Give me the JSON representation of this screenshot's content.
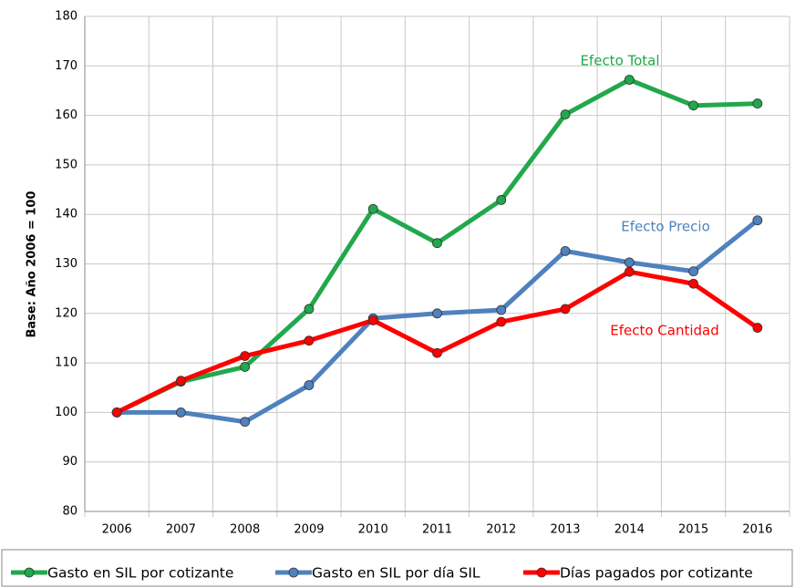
{
  "chart_data": {
    "type": "line",
    "ylabel": "Base: Año 2006 = 100",
    "categories": [
      "2006",
      "2007",
      "2008",
      "2009",
      "2010",
      "2011",
      "2012",
      "2013",
      "2014",
      "2015",
      "2016"
    ],
    "series": [
      {
        "name": "Gasto en SIL por cotizante",
        "color": "#22a84c",
        "values": [
          100,
          106.2,
          109.2,
          120.9,
          141.1,
          134.2,
          142.9,
          160.2,
          167.2,
          162,
          162.4
        ]
      },
      {
        "name": "Gasto en SIL por día SIL",
        "color": "#4f81bd",
        "values": [
          100,
          100,
          98.1,
          105.5,
          119,
          120,
          120.7,
          132.6,
          130.3,
          128.5,
          138.8
        ]
      },
      {
        "name": "Días pagados por cotizante",
        "color": "#ff0000",
        "values": [
          100,
          106.4,
          111.4,
          114.5,
          118.6,
          112,
          118.3,
          120.9,
          128.4,
          126,
          117.1
        ]
      }
    ],
    "annotations": [
      {
        "text": "Efecto Total",
        "series": 0
      },
      {
        "text": "Efecto Precio",
        "series": 1
      },
      {
        "text": "Efecto Cantidad",
        "series": 2
      }
    ],
    "ylim": [
      80,
      180
    ],
    "yticks": [
      80,
      90,
      100,
      110,
      120,
      130,
      140,
      150,
      160,
      170,
      180
    ],
    "grid": true,
    "legend": "bottom"
  }
}
